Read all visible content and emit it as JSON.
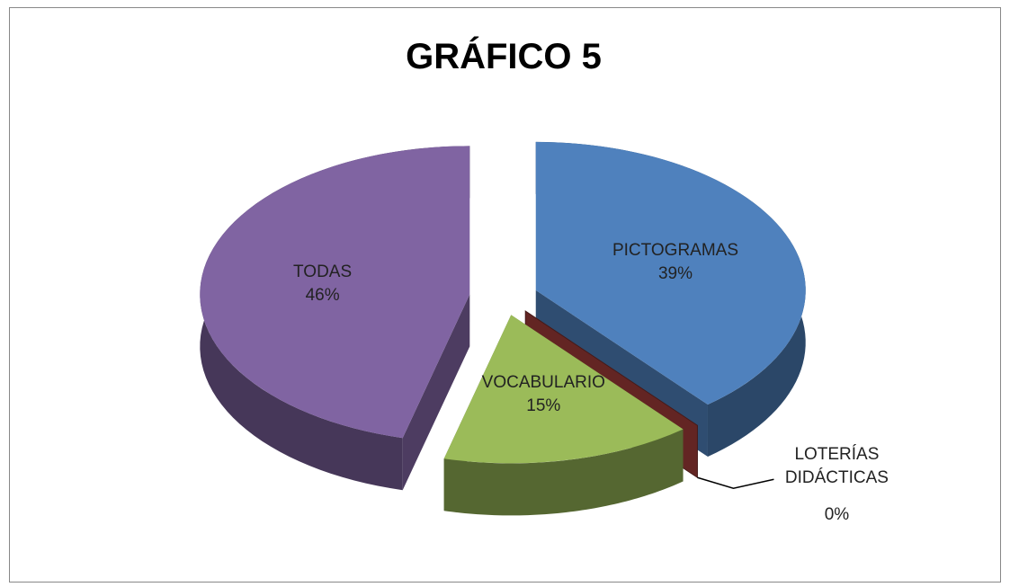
{
  "chart_data": {
    "type": "pie",
    "title": "GRÁFICO  5",
    "categories": [
      "PICTOGRAMAS",
      "LOTERÍAS DIDÁCTICAS",
      "VOCABULARIO",
      "TODAS"
    ],
    "values": [
      39,
      0,
      15,
      46
    ],
    "value_labels": [
      "39%",
      "0%",
      "15%",
      "46%"
    ],
    "colors": [
      "#4f81bd",
      "#632523",
      "#9bbb59",
      "#8064a2"
    ]
  }
}
